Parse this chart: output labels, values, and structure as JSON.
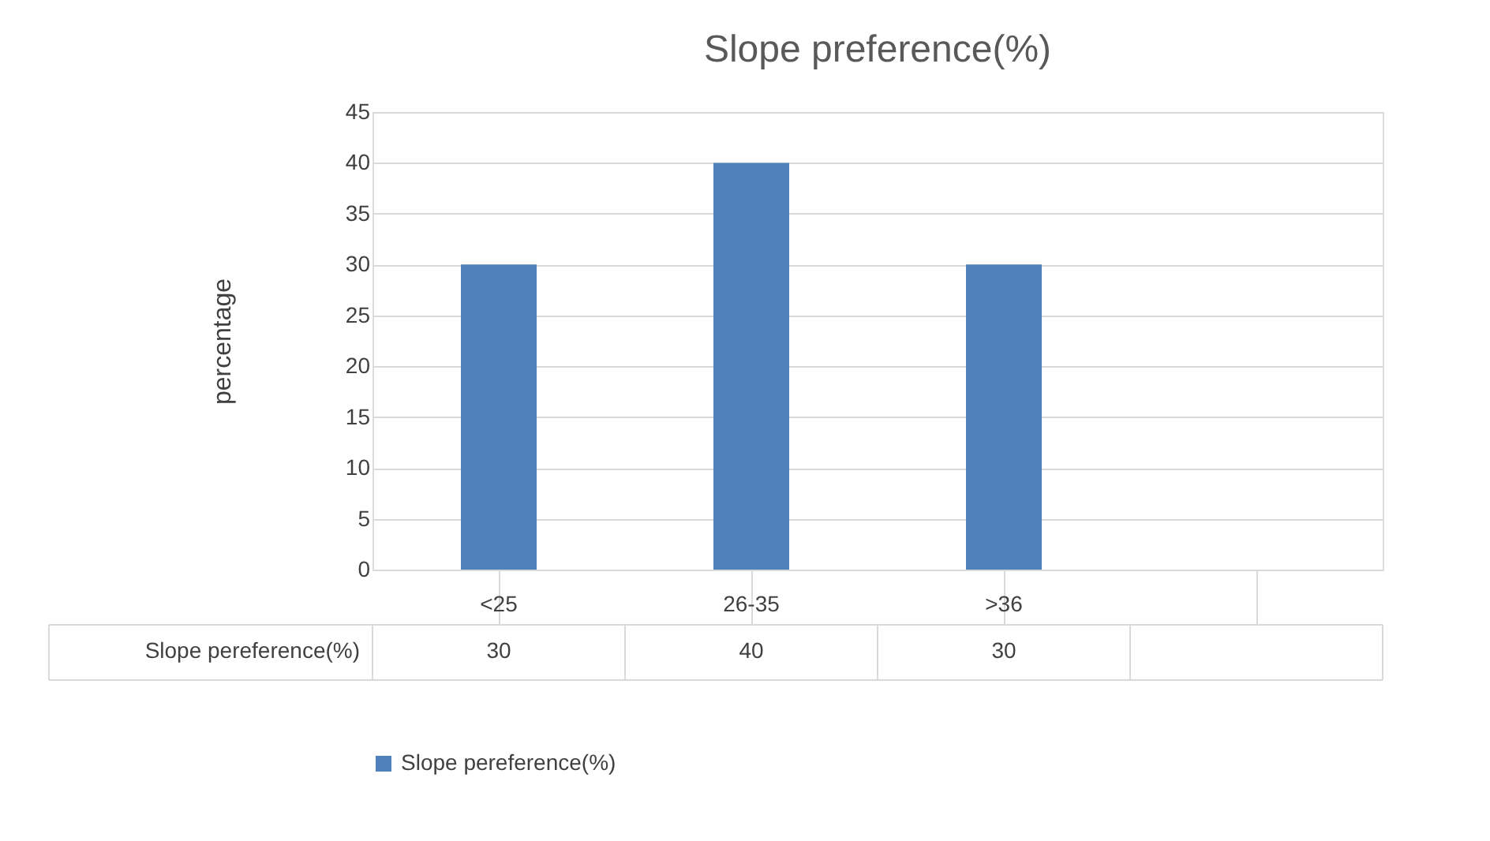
{
  "chart_data": {
    "type": "bar",
    "title": "Slope preference(%)",
    "ylabel": "percentage",
    "categories": [
      "<25",
      "26-35",
      ">36",
      null
    ],
    "series": [
      {
        "name": "Slope pereference(%)",
        "color": "#4f81bd",
        "values": [
          30,
          40,
          30,
          null
        ]
      }
    ],
    "ylim": [
      0,
      45
    ],
    "yticks": [
      0,
      5,
      10,
      15,
      20,
      25,
      30,
      35,
      40,
      45
    ],
    "grid": "y",
    "legend": "bottom",
    "data_labels": true
  }
}
